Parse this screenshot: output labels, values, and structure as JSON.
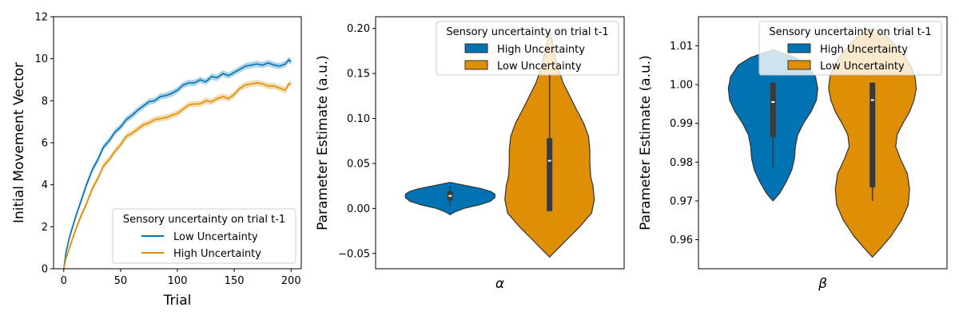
{
  "chart_data": [
    {
      "type": "line",
      "xlabel": "Trial",
      "ylabel": "Initial Movement Vector",
      "xlim": [
        -9,
        209
      ],
      "ylim": [
        0,
        12
      ],
      "xticks": [
        0,
        50,
        100,
        150,
        200
      ],
      "yticks": [
        0,
        2,
        4,
        6,
        8,
        10,
        12
      ],
      "grid": false,
      "legend": {
        "title": "Sensory uncertainty on trial t-1",
        "placement": "lower-right",
        "entries": [
          "Low Uncertainty",
          "High Uncertainty"
        ]
      },
      "series": [
        {
          "name": "Low Uncertainty",
          "color": "#0173b2",
          "band": 0.15,
          "x": [
            0,
            2,
            5,
            10,
            15,
            20,
            25,
            30,
            35,
            40,
            45,
            50,
            55,
            60,
            65,
            70,
            75,
            80,
            85,
            90,
            95,
            100,
            105,
            110,
            115,
            120,
            125,
            130,
            135,
            140,
            145,
            150,
            155,
            160,
            165,
            170,
            175,
            180,
            185,
            190,
            195,
            198,
            200
          ],
          "y": [
            0,
            0.8,
            1.5,
            2.4,
            3.2,
            4.0,
            4.7,
            5.2,
            5.8,
            6.1,
            6.5,
            6.75,
            7.1,
            7.3,
            7.55,
            7.75,
            7.95,
            8.0,
            8.2,
            8.25,
            8.35,
            8.5,
            8.75,
            8.85,
            8.85,
            9.0,
            8.9,
            9.15,
            9.1,
            9.3,
            9.2,
            9.35,
            9.5,
            9.65,
            9.7,
            9.75,
            9.7,
            9.8,
            9.7,
            9.65,
            9.75,
            9.95,
            9.85
          ]
        },
        {
          "name": "High Uncertainty",
          "color": "#de8f05",
          "band": 0.15,
          "x": [
            0,
            2,
            5,
            10,
            15,
            20,
            25,
            30,
            35,
            40,
            45,
            50,
            55,
            60,
            65,
            70,
            75,
            80,
            85,
            90,
            95,
            100,
            105,
            110,
            115,
            120,
            125,
            130,
            135,
            140,
            145,
            150,
            155,
            160,
            165,
            170,
            175,
            180,
            185,
            190,
            195,
            198,
            200
          ],
          "y": [
            0,
            0.5,
            1.0,
            1.8,
            2.5,
            3.1,
            3.8,
            4.3,
            4.9,
            5.2,
            5.6,
            5.9,
            6.3,
            6.45,
            6.65,
            6.85,
            6.95,
            7.1,
            7.15,
            7.2,
            7.3,
            7.4,
            7.6,
            7.8,
            7.85,
            7.85,
            8.0,
            7.95,
            8.1,
            8.2,
            8.1,
            8.3,
            8.6,
            8.75,
            8.8,
            8.85,
            8.8,
            8.7,
            8.7,
            8.6,
            8.5,
            8.8,
            8.8
          ]
        }
      ]
    },
    {
      "type": "violin",
      "xlabel": "α",
      "ylabel": "Parameter Estimate (a.u.)",
      "ylim": [
        -0.067,
        0.213
      ],
      "yticks": [
        -0.05,
        0.0,
        0.05,
        0.1,
        0.15,
        0.2
      ],
      "ytick_labels": [
        "−0.05",
        "0.00",
        "0.05",
        "0.10",
        "0.15",
        "0.20"
      ],
      "grid": false,
      "legend": {
        "title": "Sensory uncertainty on trial t-1",
        "placement": "upper-right",
        "entries": [
          "High Uncertainty",
          "Low Uncertainty"
        ]
      },
      "series": [
        {
          "name": "High Uncertainty",
          "color": "#0173b2",
          "range": [
            -0.007,
            0.029
          ],
          "quartiles": [
            0.009,
            0.014,
            0.019
          ],
          "whiskers": [
            0.003,
            0.025
          ],
          "profile": [
            [
              -0.007,
              0
            ],
            [
              -0.004,
              0.1
            ],
            [
              0.0,
              0.3
            ],
            [
              0.004,
              0.65
            ],
            [
              0.008,
              0.9
            ],
            [
              0.012,
              1.0
            ],
            [
              0.016,
              1.0
            ],
            [
              0.019,
              0.9
            ],
            [
              0.022,
              0.7
            ],
            [
              0.025,
              0.4
            ],
            [
              0.027,
              0.2
            ],
            [
              0.029,
              0
            ]
          ]
        },
        {
          "name": "Low Uncertainty",
          "color": "#de8f05",
          "range": [
            -0.054,
            0.2
          ],
          "quartiles": [
            -0.003,
            0.053,
            0.078
          ],
          "whiskers": [
            -0.003,
            0.15
          ],
          "profile": [
            [
              -0.054,
              0
            ],
            [
              -0.045,
              0.18
            ],
            [
              -0.035,
              0.38
            ],
            [
              -0.02,
              0.68
            ],
            [
              -0.005,
              0.94
            ],
            [
              0.01,
              1.0
            ],
            [
              0.025,
              0.97
            ],
            [
              0.035,
              0.92
            ],
            [
              0.05,
              0.9
            ],
            [
              0.065,
              0.9
            ],
            [
              0.08,
              0.87
            ],
            [
              0.095,
              0.76
            ],
            [
              0.11,
              0.6
            ],
            [
              0.125,
              0.45
            ],
            [
              0.14,
              0.3
            ],
            [
              0.155,
              0.2
            ],
            [
              0.17,
              0.12
            ],
            [
              0.185,
              0.06
            ],
            [
              0.2,
              0
            ]
          ]
        }
      ]
    },
    {
      "type": "violin",
      "xlabel": "β",
      "ylabel": "Parameter Estimate (a.u.)",
      "ylim": [
        0.9525,
        1.0175
      ],
      "yticks": [
        0.96,
        0.97,
        0.98,
        0.99,
        1.0,
        1.01
      ],
      "ytick_labels": [
        "0.96",
        "0.97",
        "0.98",
        "0.99",
        "1.00",
        "1.01"
      ],
      "grid": false,
      "legend": {
        "title": "Sensory uncertainty on trial t-1",
        "placement": "upper-right",
        "entries": [
          "High Uncertainty",
          "Low Uncertainty"
        ]
      },
      "series": [
        {
          "name": "High Uncertainty",
          "color": "#0173b2",
          "range": [
            0.97,
            1.009
          ],
          "quartiles": [
            0.9865,
            0.9955,
            1.0005
          ],
          "whiskers": [
            0.9785,
            1.0005
          ],
          "profile": [
            [
              0.97,
              0
            ],
            [
              0.972,
              0.15
            ],
            [
              0.975,
              0.3
            ],
            [
              0.978,
              0.42
            ],
            [
              0.981,
              0.48
            ],
            [
              0.984,
              0.5
            ],
            [
              0.987,
              0.55
            ],
            [
              0.99,
              0.68
            ],
            [
              0.993,
              0.85
            ],
            [
              0.996,
              0.97
            ],
            [
              0.999,
              1.0
            ],
            [
              1.002,
              0.95
            ],
            [
              1.005,
              0.78
            ],
            [
              1.007,
              0.5
            ],
            [
              1.009,
              0
            ]
          ]
        },
        {
          "name": "Low Uncertainty",
          "color": "#de8f05",
          "range": [
            0.9555,
            1.0145
          ],
          "quartiles": [
            0.9735,
            0.996,
            1.0005
          ],
          "whiskers": [
            0.97,
            1.0005
          ],
          "profile": [
            [
              0.9555,
              0
            ],
            [
              0.958,
              0.2
            ],
            [
              0.961,
              0.42
            ],
            [
              0.965,
              0.65
            ],
            [
              0.969,
              0.8
            ],
            [
              0.973,
              0.83
            ],
            [
              0.977,
              0.78
            ],
            [
              0.981,
              0.62
            ],
            [
              0.984,
              0.52
            ],
            [
              0.987,
              0.55
            ],
            [
              0.99,
              0.68
            ],
            [
              0.993,
              0.83
            ],
            [
              0.996,
              0.93
            ],
            [
              0.999,
              0.98
            ],
            [
              1.002,
              0.95
            ],
            [
              1.005,
              0.85
            ],
            [
              1.008,
              0.68
            ],
            [
              1.011,
              0.45
            ],
            [
              1.013,
              0.25
            ],
            [
              1.0145,
              0
            ]
          ]
        }
      ]
    }
  ]
}
